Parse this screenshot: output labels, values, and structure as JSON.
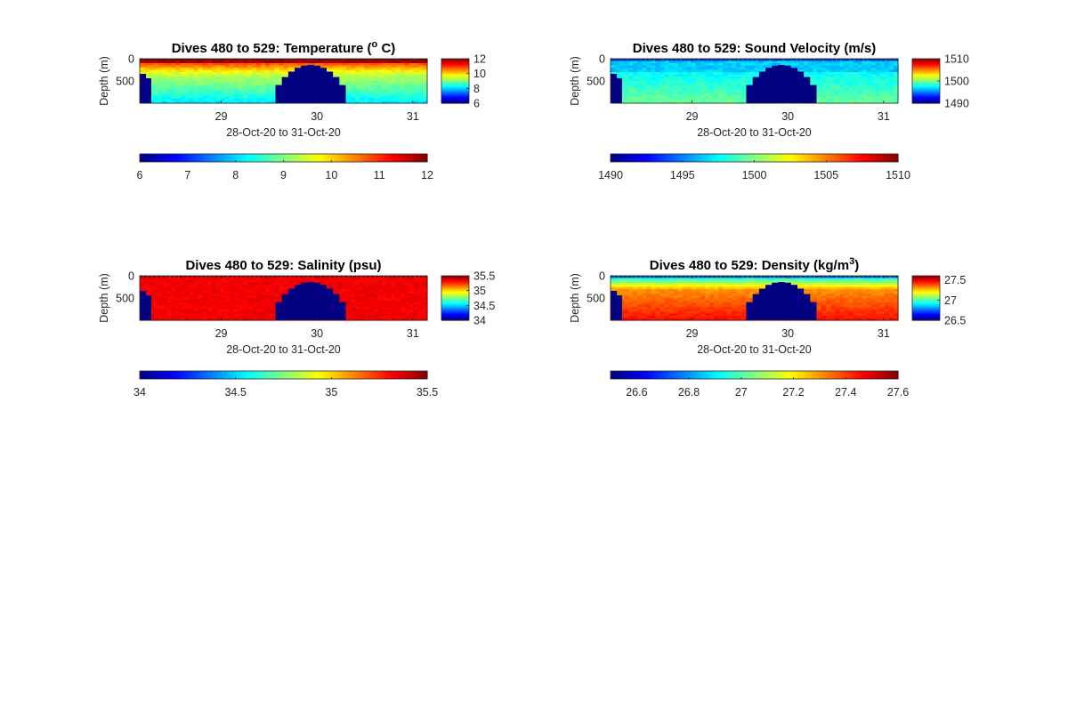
{
  "chart_data": [
    {
      "type": "heatmap",
      "title_prefix": "Dives 480 to 529: Temperature (",
      "title_super": "o",
      "title_suffix": " C)",
      "xlabel": "28-Oct-20 to 31-Oct-20",
      "ylabel": "Depth (m)",
      "x_ticks": [
        "29",
        "30",
        "31"
      ],
      "x_tick_values": [
        29,
        30,
        31
      ],
      "xlim": [
        28.15,
        31.15
      ],
      "y_ticks": [
        "0",
        "500"
      ],
      "y_tick_values": [
        0,
        500
      ],
      "ylim": [
        0,
        1000
      ],
      "clim": [
        6,
        12
      ],
      "side_colorbar_ticks": [
        "12",
        "10",
        "8",
        "6"
      ],
      "side_colorbar_values": [
        12,
        10,
        8,
        6
      ],
      "bottom_colorbar_ticks": [
        "6",
        "7",
        "8",
        "9",
        "10",
        "11",
        "12"
      ],
      "bottom_colorbar_values": [
        6,
        7,
        8,
        9,
        10,
        11,
        12
      ],
      "surface_value": 11.8,
      "deep_value": 8.6,
      "no_data_regions": [
        {
          "x_start": 28.15,
          "x_end": 28.27,
          "depth_top": 340
        },
        {
          "x_start": 29.5,
          "x_end": 30.3,
          "depth_top": 140
        }
      ]
    },
    {
      "type": "heatmap",
      "title_prefix": "Dives 480 to 529: Sound Velocity (m/s)",
      "title_super": "",
      "title_suffix": "",
      "xlabel": "28-Oct-20 to 31-Oct-20",
      "ylabel": "Depth (m)",
      "x_ticks": [
        "29",
        "30",
        "31"
      ],
      "x_tick_values": [
        29,
        30,
        31
      ],
      "xlim": [
        28.15,
        31.15
      ],
      "y_ticks": [
        "0",
        "500"
      ],
      "y_tick_values": [
        0,
        500
      ],
      "ylim": [
        0,
        1000
      ],
      "clim": [
        1490,
        1510
      ],
      "side_colorbar_ticks": [
        "1510",
        "1500",
        "1490"
      ],
      "side_colorbar_values": [
        1510,
        1500,
        1490
      ],
      "bottom_colorbar_ticks": [
        "1490",
        "1495",
        "1500",
        "1505",
        "1510"
      ],
      "bottom_colorbar_values": [
        1490,
        1495,
        1500,
        1505,
        1510
      ],
      "surface_value": 1496.5,
      "deep_value": 1499,
      "no_data_regions": [
        {
          "x_start": 28.15,
          "x_end": 28.27,
          "depth_top": 340
        },
        {
          "x_start": 29.5,
          "x_end": 30.3,
          "depth_top": 140
        }
      ]
    },
    {
      "type": "heatmap",
      "title_prefix": "Dives 480 to 529: Salinity (psu)",
      "title_super": "",
      "title_suffix": "",
      "xlabel": "28-Oct-20 to 31-Oct-20",
      "ylabel": "Depth (m)",
      "x_ticks": [
        "29",
        "30",
        "31"
      ],
      "x_tick_values": [
        29,
        30,
        31
      ],
      "xlim": [
        28.15,
        31.15
      ],
      "y_ticks": [
        "0",
        "500"
      ],
      "y_tick_values": [
        0,
        500
      ],
      "ylim": [
        0,
        1000
      ],
      "clim": [
        34,
        35.5
      ],
      "side_colorbar_ticks": [
        "35.5",
        "35",
        "34.5",
        "34"
      ],
      "side_colorbar_values": [
        35.5,
        35,
        34.5,
        34
      ],
      "bottom_colorbar_ticks": [
        "34",
        "34.5",
        "35",
        "35.5"
      ],
      "bottom_colorbar_values": [
        34,
        34.5,
        35,
        35.5
      ],
      "surface_value": 35.3,
      "deep_value": 35.3,
      "no_data_regions": [
        {
          "x_start": 28.15,
          "x_end": 28.27,
          "depth_top": 340
        },
        {
          "x_start": 29.5,
          "x_end": 30.3,
          "depth_top": 140
        }
      ]
    },
    {
      "type": "heatmap",
      "title_prefix": "Dives 480 to 529: Density (kg/m",
      "title_super": "3",
      "title_suffix": ")",
      "xlabel": "28-Oct-20 to 31-Oct-20",
      "ylabel": "Depth (m)",
      "x_ticks": [
        "29",
        "30",
        "31"
      ],
      "x_tick_values": [
        29,
        30,
        31
      ],
      "xlim": [
        28.15,
        31.15
      ],
      "y_ticks": [
        "0",
        "500"
      ],
      "y_tick_values": [
        0,
        500
      ],
      "ylim": [
        0,
        1000
      ],
      "clim": [
        26.5,
        27.6
      ],
      "side_colorbar_ticks": [
        "27.5",
        "27",
        "26.5"
      ],
      "side_colorbar_values": [
        27.5,
        27,
        26.5
      ],
      "bottom_colorbar_ticks": [
        "26.6",
        "26.8",
        "27",
        "27.2",
        "27.4",
        "27.6"
      ],
      "bottom_colorbar_values": [
        26.6,
        26.8,
        27,
        27.2,
        27.4,
        27.6
      ],
      "surface_value": 26.75,
      "deep_value": 27.45,
      "no_data_regions": [
        {
          "x_start": 28.15,
          "x_end": 28.27,
          "depth_top": 340
        },
        {
          "x_start": 29.5,
          "x_end": 30.3,
          "depth_top": 140
        }
      ]
    }
  ]
}
